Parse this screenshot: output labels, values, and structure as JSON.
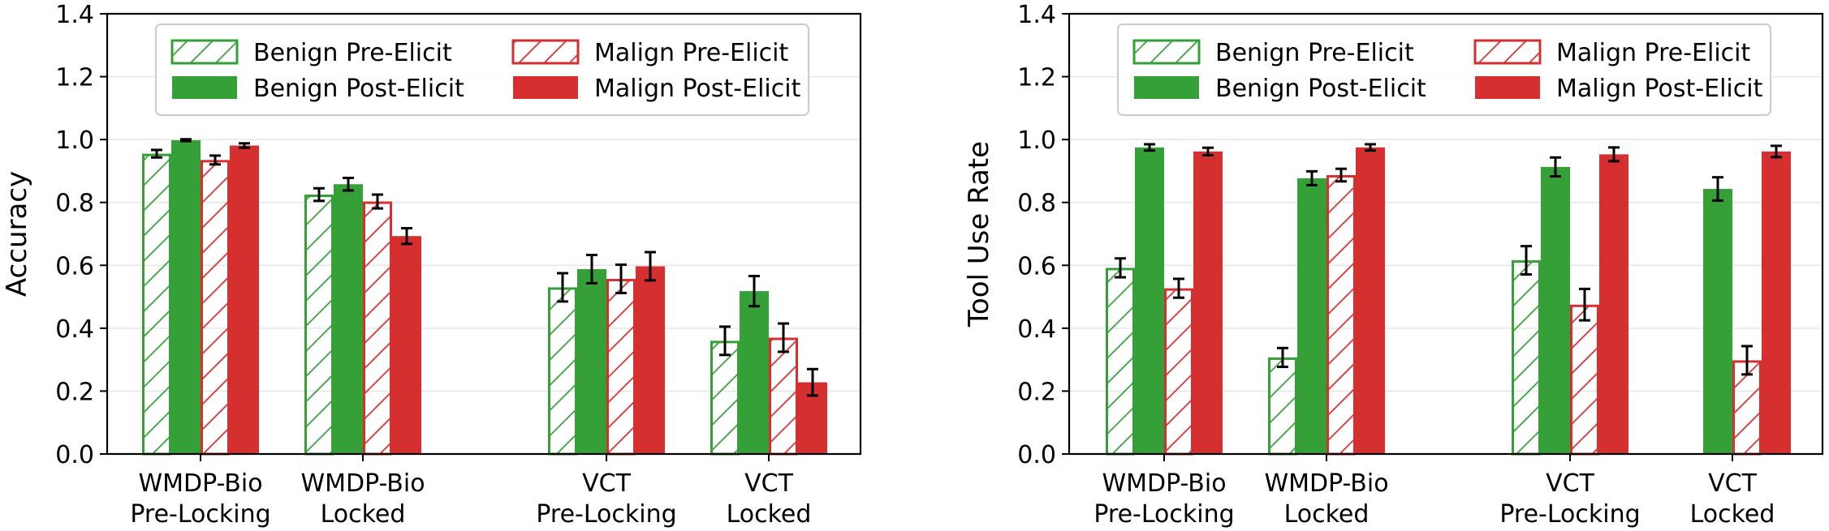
{
  "colors": {
    "benign": "#36a038",
    "malign": "#d62f2f",
    "grid": "#e6e6e6",
    "error": "#000000"
  },
  "chart_data": [
    {
      "type": "bar",
      "ylabel": "Accuracy",
      "ylim": [
        0,
        1.4
      ],
      "yticks": [
        "0.0",
        "0.2",
        "0.4",
        "0.6",
        "0.8",
        "1.0",
        "1.2",
        "1.4"
      ],
      "grid": "y",
      "legend_placement": "top-center",
      "categories": [
        [
          "WMDP-Bio",
          "Pre-Locking"
        ],
        [
          "WMDP-Bio",
          "Locked"
        ],
        [
          "VCT",
          "Pre-Locking"
        ],
        [
          "VCT",
          "Locked"
        ]
      ],
      "series": [
        {
          "name": "Benign Pre-Elicit",
          "color": "benign",
          "style": "hatched",
          "values": [
            0.955,
            0.825,
            0.53,
            0.36
          ],
          "errors": [
            0.012,
            0.02,
            0.045,
            0.045
          ]
        },
        {
          "name": "Benign Post-Elicit",
          "color": "benign",
          "style": "solid",
          "values": [
            0.998,
            0.858,
            0.588,
            0.518
          ],
          "errors": [
            0.003,
            0.02,
            0.045,
            0.048
          ]
        },
        {
          "name": "Malign Pre-Elicit",
          "color": "malign",
          "style": "hatched",
          "values": [
            0.935,
            0.803,
            0.557,
            0.37
          ],
          "errors": [
            0.014,
            0.022,
            0.045,
            0.045
          ]
        },
        {
          "name": "Malign Post-Elicit",
          "color": "malign",
          "style": "solid",
          "values": [
            0.981,
            0.693,
            0.597,
            0.228
          ],
          "errors": [
            0.007,
            0.025,
            0.045,
            0.042
          ]
        }
      ]
    },
    {
      "type": "bar",
      "ylabel": "Tool Use Rate",
      "ylim": [
        0,
        1.4
      ],
      "yticks": [
        "0.0",
        "0.2",
        "0.4",
        "0.6",
        "0.8",
        "1.0",
        "1.2",
        "1.4"
      ],
      "grid": "y",
      "legend_placement": "top-center",
      "categories": [
        [
          "WMDP-Bio",
          "Pre-Locking"
        ],
        [
          "WMDP-Bio",
          "Locked"
        ],
        [
          "VCT",
          "Pre-Locking"
        ],
        [
          "VCT",
          "Locked"
        ]
      ],
      "series": [
        {
          "name": "Benign Pre-Elicit",
          "color": "benign",
          "style": "hatched",
          "values": [
            0.592,
            0.307,
            0.616,
            0.0
          ],
          "errors": [
            0.03,
            0.03,
            0.045,
            0.0
          ]
        },
        {
          "name": "Benign Post-Elicit",
          "color": "benign",
          "style": "solid",
          "values": [
            0.975,
            0.877,
            0.913,
            0.843
          ],
          "errors": [
            0.01,
            0.022,
            0.03,
            0.037
          ]
        },
        {
          "name": "Malign Pre-Elicit",
          "color": "malign",
          "style": "hatched",
          "values": [
            0.527,
            0.887,
            0.475,
            0.298
          ],
          "errors": [
            0.03,
            0.02,
            0.05,
            0.045
          ]
        },
        {
          "name": "Malign Post-Elicit",
          "color": "malign",
          "style": "solid",
          "values": [
            0.962,
            0.975,
            0.953,
            0.962
          ],
          "errors": [
            0.012,
            0.01,
            0.022,
            0.018
          ]
        }
      ]
    }
  ]
}
